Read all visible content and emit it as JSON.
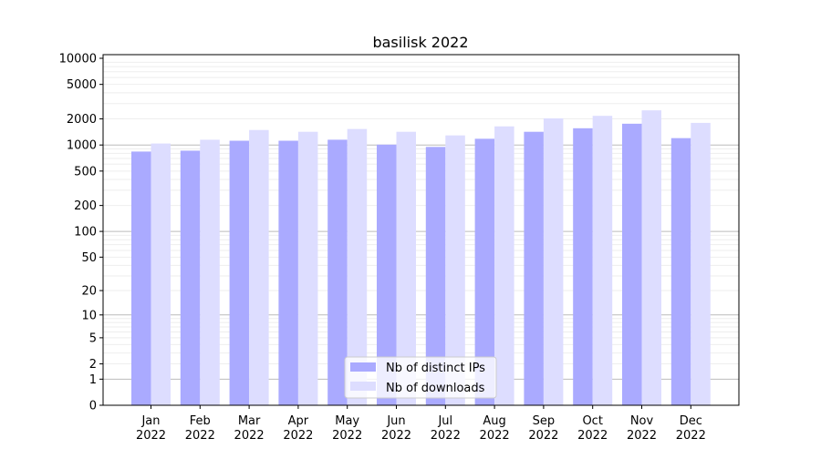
{
  "chart_data": {
    "type": "bar",
    "title": "basilisk 2022",
    "xlabel": "",
    "ylabel": "",
    "yscale": "symlog",
    "ylim": [
      0,
      12000
    ],
    "grid": true,
    "legend_placement": "bottom-center",
    "categories": [
      "Jan\n2022",
      "Feb\n2022",
      "Mar\n2022",
      "Apr\n2022",
      "May\n2022",
      "Jun\n2022",
      "Jul\n2022",
      "Aug\n2022",
      "Sep\n2022",
      "Oct\n2022",
      "Nov\n2022",
      "Dec\n2022"
    ],
    "yticks": [
      0,
      1,
      2,
      5,
      10,
      20,
      50,
      100,
      200,
      500,
      1000,
      2000,
      5000,
      10000
    ],
    "series": [
      {
        "name": "Nb of distinct IPs",
        "color": "#aaaaff",
        "values": [
          840,
          860,
          1120,
          1120,
          1150,
          1010,
          950,
          1180,
          1420,
          1560,
          1760,
          1200
        ]
      },
      {
        "name": "Nb of downloads",
        "color": "#ddddff",
        "values": [
          1040,
          1150,
          1490,
          1420,
          1530,
          1420,
          1290,
          1640,
          2030,
          2170,
          2510,
          1800
        ]
      }
    ]
  }
}
